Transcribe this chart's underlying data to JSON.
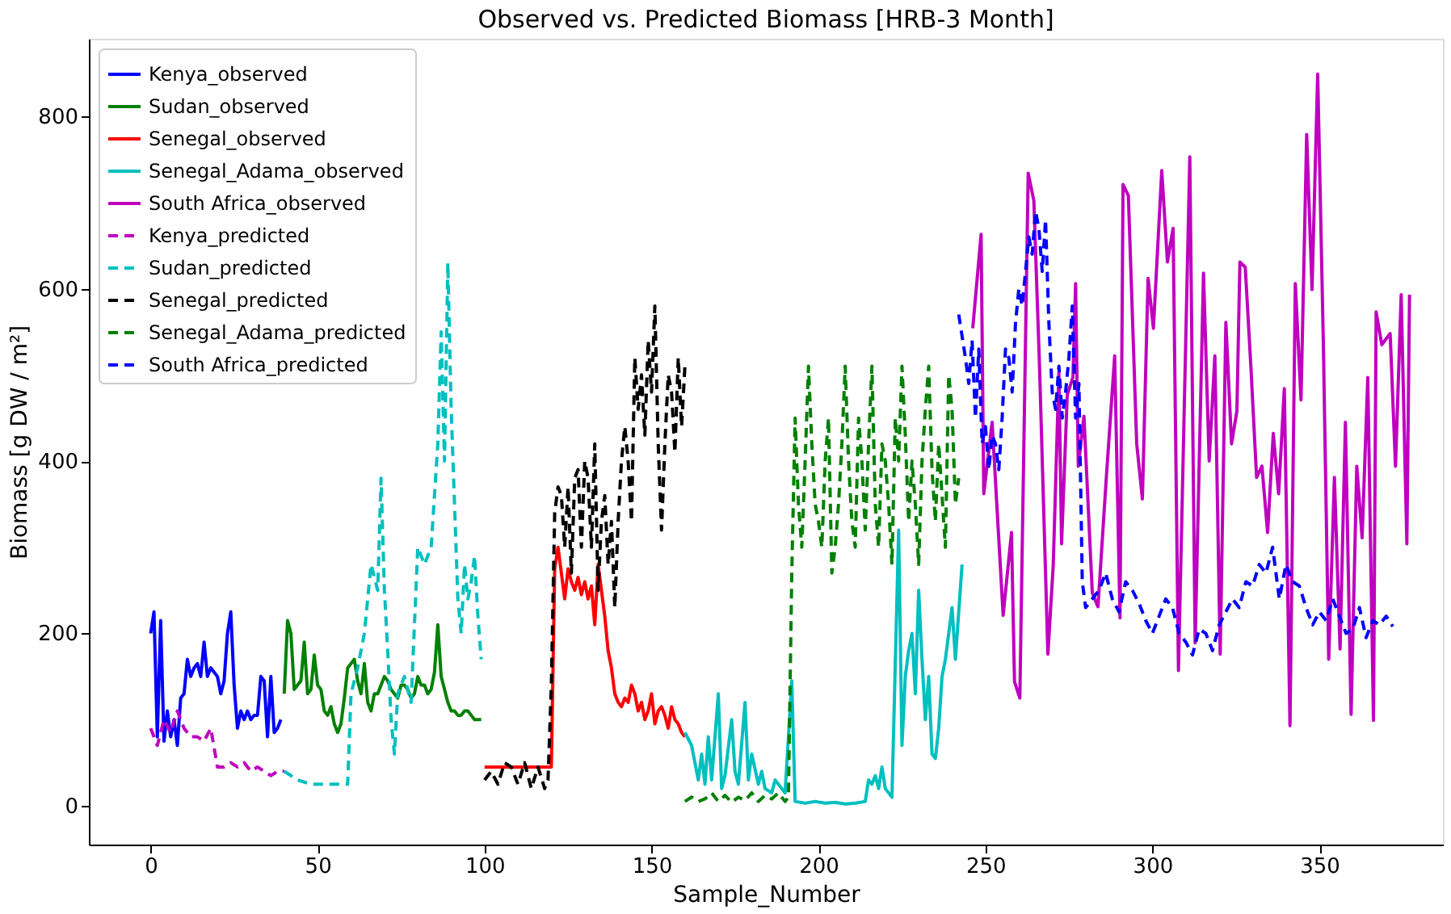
{
  "chart_data": {
    "type": "line",
    "title": "Observed vs. Predicted Biomass [HRB-3 Month]",
    "xlabel": "Sample_Number",
    "ylabel": "Biomass [g DW / m²]",
    "xlim": [
      -18.5,
      387
    ],
    "ylim": [
      -45,
      890
    ],
    "xticks": [
      0,
      50,
      100,
      150,
      200,
      250,
      300,
      350
    ],
    "yticks": [
      0,
      200,
      400,
      600,
      800
    ],
    "grid": false,
    "legend": "top left",
    "series": [
      {
        "name": "Kenya_observed",
        "color": "#0000ff",
        "line_style": "solid",
        "x": [
          0,
          1,
          2,
          3,
          4,
          5,
          6,
          7,
          8,
          9,
          10,
          11,
          12,
          13,
          14,
          15,
          16,
          17,
          18,
          19,
          20,
          21,
          22,
          23,
          24,
          25,
          26,
          27,
          28,
          29,
          30,
          31,
          32,
          33,
          34,
          35,
          36,
          37,
          38,
          39
        ],
        "values": [
          200,
          225,
          80,
          215,
          75,
          110,
          80,
          100,
          70,
          125,
          130,
          170,
          150,
          160,
          165,
          150,
          190,
          150,
          160,
          155,
          150,
          130,
          145,
          200,
          225,
          140,
          90,
          110,
          100,
          110,
          100,
          105,
          105,
          150,
          145,
          80,
          150,
          85,
          90,
          100
        ]
      },
      {
        "name": "Sudan_observed",
        "color": "#008000",
        "line_style": "solid",
        "x": [
          40,
          41,
          42,
          43,
          44,
          45,
          46,
          47,
          48,
          49,
          50,
          51,
          52,
          53,
          54,
          55,
          56,
          57,
          58,
          59,
          60,
          61,
          62,
          63,
          64,
          65,
          66,
          67,
          68,
          69,
          70,
          71,
          72,
          73,
          74,
          75,
          76,
          77,
          78,
          79,
          80,
          81,
          82,
          83,
          84,
          85,
          86,
          87,
          88,
          89,
          90,
          91,
          92,
          93,
          94,
          95,
          96,
          97,
          98,
          99
        ],
        "values": [
          130,
          215,
          200,
          135,
          140,
          145,
          190,
          130,
          135,
          175,
          140,
          135,
          110,
          105,
          115,
          95,
          85,
          95,
          125,
          160,
          165,
          170,
          145,
          130,
          165,
          120,
          110,
          130,
          130,
          140,
          150,
          145,
          135,
          130,
          125,
          140,
          140,
          135,
          125,
          130,
          150,
          140,
          140,
          130,
          135,
          155,
          210,
          150,
          135,
          120,
          110,
          110,
          105,
          105,
          110,
          110,
          105,
          100,
          100,
          100
        ]
      },
      {
        "name": "Senegal_observed",
        "color": "#ff0000",
        "line_style": "solid",
        "x": [
          100,
          105,
          110,
          115,
          120,
          121,
          122,
          123,
          124,
          125,
          126,
          127,
          128,
          129,
          130,
          131,
          132,
          133,
          134,
          135,
          136,
          137,
          138,
          139,
          140,
          141,
          142,
          143,
          144,
          145,
          146,
          147,
          148,
          149,
          150,
          151,
          152,
          153,
          154,
          155,
          156,
          157,
          158,
          159,
          160
        ],
        "values": [
          45,
          45,
          45,
          45,
          45,
          275,
          300,
          270,
          240,
          275,
          260,
          250,
          265,
          245,
          260,
          240,
          255,
          210,
          280,
          250,
          220,
          180,
          160,
          130,
          120,
          115,
          125,
          120,
          140,
          130,
          110,
          120,
          100,
          110,
          130,
          95,
          110,
          115,
          105,
          90,
          115,
          100,
          95,
          85,
          80
        ]
      },
      {
        "name": "Senegal_Adama_observed",
        "color": "#00bfbf",
        "line_style": "solid",
        "x": [
          160,
          162,
          163,
          164,
          165,
          166,
          167,
          168,
          170,
          171,
          172,
          174,
          175,
          176,
          178,
          179,
          180,
          182,
          183,
          184,
          186,
          187,
          189,
          190,
          192,
          193,
          196,
          199,
          202,
          205,
          208,
          211,
          214,
          215,
          216,
          217,
          218,
          219,
          220,
          222,
          224,
          225,
          226,
          227,
          228,
          229,
          230,
          231,
          232,
          233,
          234,
          235,
          236,
          237,
          238,
          240,
          241,
          243
        ],
        "values": [
          85,
          70,
          50,
          30,
          60,
          25,
          80,
          30,
          130,
          20,
          35,
          100,
          40,
          25,
          120,
          30,
          60,
          25,
          40,
          20,
          15,
          30,
          20,
          15,
          145,
          5,
          3,
          5,
          3,
          4,
          2,
          3,
          5,
          30,
          25,
          35,
          20,
          45,
          20,
          10,
          320,
          70,
          150,
          180,
          200,
          130,
          250,
          170,
          100,
          150,
          60,
          55,
          90,
          150,
          170,
          230,
          170,
          280
        ]
      },
      {
        "name": "South Africa_observed",
        "color": "#bf00bf",
        "line_style": "solid",
        "x": [
          246.2,
          248.7,
          249.5,
          252,
          255.3,
          257.8,
          258.7,
          260.3,
          262.8,
          264.5,
          266.2,
          268.7,
          270.3,
          272,
          272.8,
          274.5,
          276.2,
          277,
          277.8,
          279.5,
          282,
          283.7,
          286.2,
          288.7,
          290.3,
          291.2,
          292.8,
          295.3,
          297,
          298.7,
          300.3,
          302.8,
          304.5,
          306.2,
          307.8,
          311.2,
          312.8,
          315.3,
          317,
          318.7,
          320.3,
          322,
          323.7,
          325.3,
          326.2,
          327.8,
          329.5,
          331.2,
          332.8,
          334.5,
          336.2,
          337.8,
          339.5,
          341.2,
          342.8,
          344.5,
          346.2,
          347.8,
          349.5,
          351.2,
          352.8,
          354.5,
          356.2,
          357.8,
          359.5,
          361.2,
          362.8,
          364.5,
          366.2,
          367,
          368.7,
          371.2,
          372.8,
          374.5,
          376.2,
          377
        ],
        "values": [
          554,
          663,
          362,
          445,
          221,
          317,
          144,
          125,
          734,
          702,
          509,
          176,
          279,
          503,
          304,
          477,
          497,
          606,
          394,
          452,
          247,
          231,
          381,
          522,
          218,
          721,
          708,
          420,
          356,
          612,
          554,
          737,
          631,
          670,
          157,
          753,
          189,
          618,
          400,
          522,
          176,
          561,
          420,
          458,
          631,
          625,
          509,
          381,
          394,
          317,
          432,
          362,
          484,
          93,
          606,
          471,
          779,
          599,
          849,
          535,
          170,
          381,
          182,
          445,
          106,
          394,
          311,
          497,
          99,
          573,
          535,
          548,
          394,
          593,
          304,
          593
        ]
      },
      {
        "name": "Kenya_predicted",
        "color": "#bf00bf",
        "line_style": "dashed",
        "x": [
          0,
          2,
          4,
          6,
          8,
          10,
          12,
          14,
          16,
          18,
          20,
          22,
          24,
          26,
          28,
          30,
          32,
          34,
          36,
          38,
          40
        ],
        "values": [
          90,
          70,
          100,
          85,
          110,
          90,
          80,
          80,
          75,
          90,
          45,
          45,
          50,
          45,
          50,
          40,
          45,
          40,
          35,
          40,
          40
        ]
      },
      {
        "name": "Sudan_predicted",
        "color": "#00bfbf",
        "line_style": "dashed",
        "x": [
          40,
          44,
          48,
          52,
          56,
          59,
          60,
          62,
          64,
          66,
          68,
          69,
          70,
          71,
          72,
          73,
          74,
          76,
          78,
          80,
          82,
          84,
          86,
          87,
          88,
          89,
          90,
          91,
          92,
          93,
          94,
          95,
          96,
          97,
          98,
          99
        ],
        "values": [
          40,
          30,
          25,
          25,
          25,
          25,
          130,
          160,
          200,
          280,
          250,
          380,
          250,
          180,
          100,
          60,
          130,
          150,
          120,
          300,
          280,
          300,
          420,
          550,
          400,
          630,
          460,
          350,
          240,
          200,
          280,
          240,
          260,
          290,
          220,
          170
        ]
      },
      {
        "name": "Senegal_predicted",
        "color": "#000000",
        "line_style": "dashed",
        "x": [
          100,
          102,
          104,
          106,
          108,
          110,
          112,
          114,
          116,
          118,
          119,
          120,
          121,
          122,
          123,
          124,
          125,
          126,
          127,
          128,
          129,
          130,
          131,
          132,
          133,
          134,
          135,
          136,
          137,
          138,
          139,
          140,
          141,
          142,
          143,
          144,
          145,
          146,
          147,
          148,
          149,
          150,
          151,
          152,
          153,
          154,
          155,
          156,
          157,
          158,
          159,
          160
        ],
        "values": [
          30,
          40,
          25,
          50,
          45,
          25,
          50,
          20,
          45,
          20,
          30,
          140,
          340,
          370,
          360,
          300,
          370,
          270,
          380,
          390,
          300,
          400,
          380,
          300,
          420,
          250,
          330,
          360,
          280,
          330,
          230,
          330,
          400,
          440,
          400,
          330,
          520,
          460,
          500,
          430,
          540,
          480,
          580,
          420,
          320,
          420,
          500,
          480,
          410,
          520,
          440,
          510
        ]
      },
      {
        "name": "Senegal_Adama_predicted",
        "color": "#008000",
        "line_style": "dashed",
        "x": [
          160,
          162,
          164,
          166,
          168,
          170,
          172,
          174,
          176,
          178,
          180,
          182,
          184,
          186,
          188,
          190,
          191,
          192,
          193,
          194,
          195,
          196,
          197,
          198,
          199,
          200,
          201,
          202,
          203,
          204,
          205,
          206,
          207,
          208,
          209,
          210,
          211,
          212,
          213,
          214,
          215,
          216,
          217,
          218,
          219,
          220,
          221,
          222,
          223,
          224,
          225,
          226,
          227,
          228,
          229,
          230,
          231,
          232,
          233,
          234,
          235,
          236,
          237,
          238,
          239,
          240,
          241,
          242
        ],
        "values": [
          5,
          10,
          5,
          8,
          15,
          5,
          12,
          4,
          10,
          6,
          15,
          5,
          12,
          8,
          15,
          5,
          10,
          270,
          450,
          350,
          300,
          400,
          510,
          420,
          350,
          330,
          300,
          400,
          450,
          270,
          300,
          350,
          420,
          510,
          400,
          330,
          300,
          450,
          400,
          320,
          420,
          510,
          350,
          300,
          420,
          400,
          350,
          280,
          450,
          400,
          510,
          430,
          330,
          400,
          350,
          280,
          400,
          460,
          510,
          390,
          330,
          420,
          360,
          300,
          500,
          460,
          350,
          380
        ]
      },
      {
        "name": "South Africa_predicted",
        "color": "#0000ff",
        "line_style": "dashed",
        "x": [
          242,
          244,
          245,
          246,
          247,
          248,
          249,
          250,
          251,
          252,
          253,
          254,
          255,
          256,
          257,
          258,
          259,
          260,
          261,
          262,
          263,
          264,
          265,
          266,
          267,
          268,
          269,
          270,
          271,
          272,
          273,
          274,
          275,
          276,
          277,
          278,
          279,
          280,
          282,
          284,
          286,
          288,
          290,
          292,
          294,
          296,
          298,
          300,
          302,
          304,
          306,
          308,
          310,
          312,
          314,
          316,
          318,
          320,
          322,
          324,
          326,
          328,
          330,
          332,
          334,
          336,
          338,
          340,
          342,
          344,
          346,
          348,
          350,
          352,
          354,
          356,
          358,
          360,
          362,
          364,
          366,
          368,
          370,
          372
        ],
        "values": [
          570,
          520,
          490,
          540,
          450,
          530,
          420,
          440,
          390,
          430,
          420,
          390,
          450,
          530,
          520,
          480,
          560,
          600,
          580,
          620,
          660,
          640,
          690,
          670,
          620,
          680,
          560,
          480,
          460,
          510,
          450,
          480,
          520,
          580,
          450,
          490,
          260,
          230,
          240,
          250,
          270,
          240,
          225,
          260,
          250,
          235,
          215,
          200,
          220,
          240,
          230,
          200,
          190,
          175,
          205,
          200,
          180,
          210,
          225,
          240,
          230,
          260,
          255,
          280,
          270,
          300,
          240,
          280,
          260,
          255,
          230,
          210,
          225,
          215,
          240,
          220,
          200,
          205,
          230,
          195,
          215,
          210,
          220,
          208
        ]
      }
    ]
  }
}
